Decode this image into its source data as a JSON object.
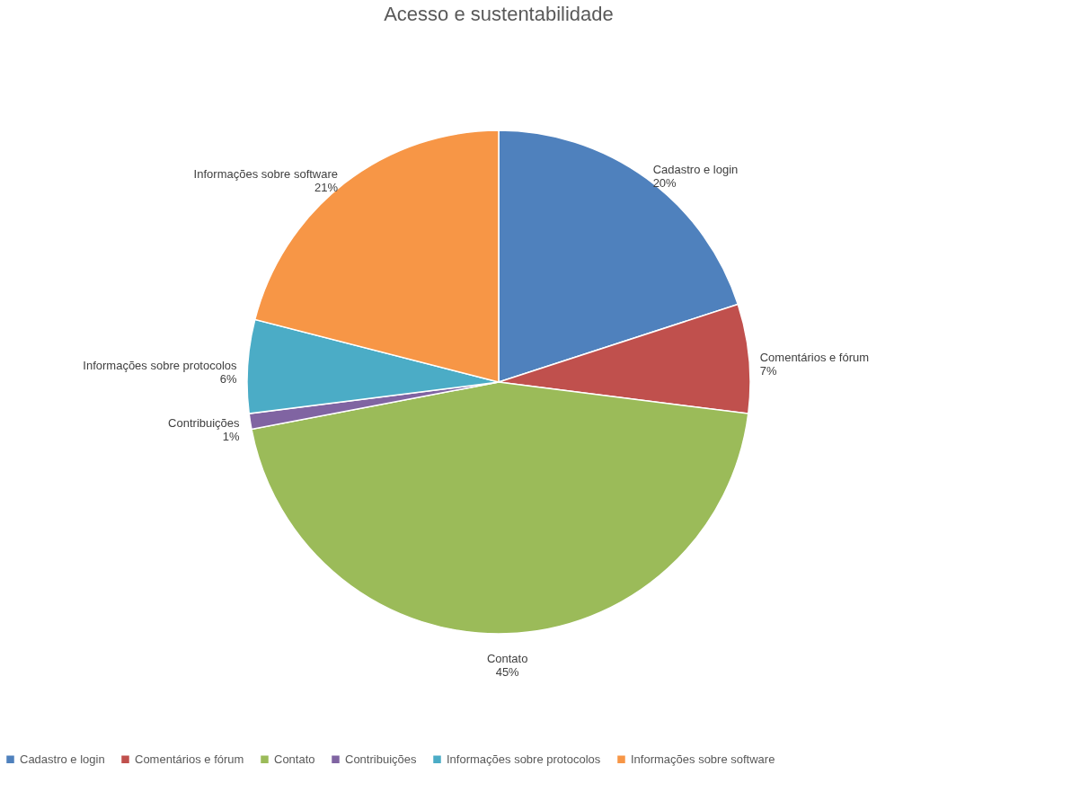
{
  "chart_data": {
    "type": "pie",
    "title": "Acesso e sustentabilidade",
    "categories": [
      "Cadastro e login",
      "Comentários e fórum",
      "Contato",
      "Contribuições",
      "Informações sobre protocolos",
      "Informações sobre software"
    ],
    "values": [
      20,
      7,
      45,
      1,
      6,
      21
    ],
    "value_labels": [
      "20%",
      "7%",
      "45%",
      "1%",
      "6%",
      "21%"
    ],
    "colors": [
      "#4f81bd",
      "#c0504d",
      "#9bbb59",
      "#8064a2",
      "#4bacc6",
      "#f79646"
    ],
    "legend": "bottom"
  }
}
